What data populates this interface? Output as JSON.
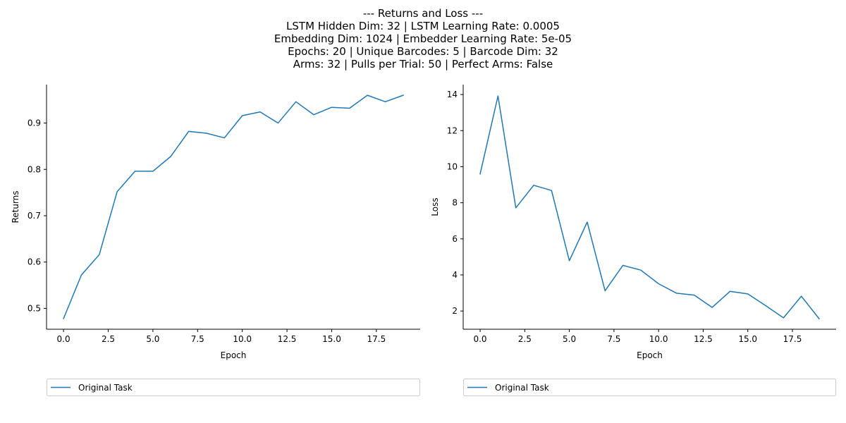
{
  "figure": {
    "title_lines": [
      "--- Returns and Loss ---",
      "LSTM Hidden Dim: 32 | LSTM Learning Rate: 0.0005",
      "Embedding Dim: 1024 | Embedder Learning Rate: 5e-05",
      "Epochs: 20 | Unique Barcodes: 5 | Barcode Dim: 32",
      "Arms: 32 | Pulls per Trial: 50 | Perfect Arms: False"
    ]
  },
  "chart_data": [
    {
      "type": "line",
      "xlabel": "Epoch",
      "ylabel": "Returns",
      "xlim": [
        -0.95,
        19.95
      ],
      "ylim": [
        0.455,
        0.983
      ],
      "xticks": [
        0,
        2.5,
        5,
        7.5,
        10,
        12.5,
        15,
        17.5
      ],
      "xtick_labels": [
        "0.0",
        "2.5",
        "5.0",
        "7.5",
        "10.0",
        "12.5",
        "15.0",
        "17.5"
      ],
      "yticks": [
        0.5,
        0.6,
        0.7,
        0.8,
        0.9
      ],
      "ytick_labels": [
        "0.5",
        "0.6",
        "0.7",
        "0.8",
        "0.9"
      ],
      "grid": false,
      "legend_position": "below",
      "series": [
        {
          "name": "Original Task",
          "color": "#1f77b4",
          "x": [
            0,
            1,
            2,
            3,
            4,
            5,
            6,
            7,
            8,
            9,
            10,
            11,
            12,
            13,
            14,
            15,
            16,
            17,
            18,
            19
          ],
          "values": [
            0.478,
            0.572,
            0.616,
            0.752,
            0.796,
            0.796,
            0.828,
            0.882,
            0.878,
            0.868,
            0.916,
            0.924,
            0.9,
            0.946,
            0.918,
            0.934,
            0.932,
            0.96,
            0.946,
            0.96
          ]
        }
      ]
    },
    {
      "type": "line",
      "xlabel": "Epoch",
      "ylabel": "Loss",
      "xlim": [
        -0.95,
        19.95
      ],
      "ylim": [
        0.99,
        14.55
      ],
      "xticks": [
        0,
        2.5,
        5,
        7.5,
        10,
        12.5,
        15,
        17.5
      ],
      "xtick_labels": [
        "0.0",
        "2.5",
        "5.0",
        "7.5",
        "10.0",
        "12.5",
        "15.0",
        "17.5"
      ],
      "yticks": [
        2,
        4,
        6,
        8,
        10,
        12,
        14
      ],
      "ytick_labels": [
        "2",
        "4",
        "6",
        "8",
        "10",
        "12",
        "14"
      ],
      "grid": false,
      "legend_position": "below",
      "series": [
        {
          "name": "Original Task",
          "color": "#1f77b4",
          "x": [
            0,
            1,
            2,
            3,
            4,
            5,
            6,
            7,
            8,
            9,
            10,
            11,
            12,
            13,
            14,
            15,
            16,
            17,
            18,
            19
          ],
          "values": [
            9.6,
            13.92,
            7.72,
            8.97,
            8.68,
            4.79,
            6.93,
            3.12,
            4.53,
            4.27,
            3.51,
            2.99,
            2.88,
            2.2,
            3.09,
            2.95,
            2.3,
            1.62,
            2.82,
            1.57
          ]
        }
      ]
    }
  ]
}
